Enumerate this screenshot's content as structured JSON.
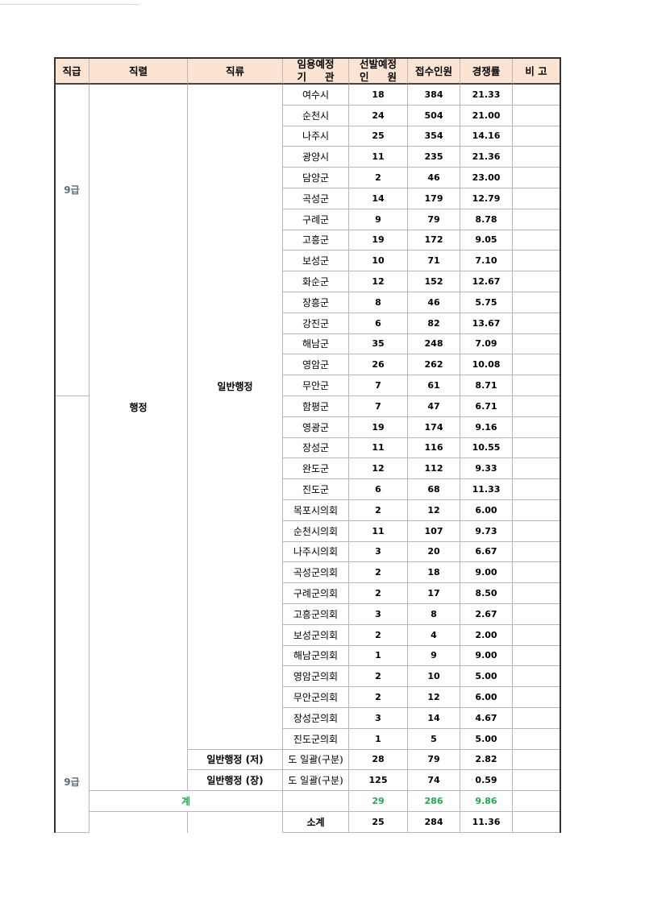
{
  "header": {
    "grade": "직급",
    "series": "직렬",
    "category": "직류",
    "org_l1": "임용예정",
    "org_l2a": "기",
    "org_l2b": "관",
    "planned_l1": "선발예정",
    "planned_l2a": "인",
    "planned_l2b": "원",
    "applicants": "접수인원",
    "ratio": "경쟁률",
    "note": "비 고"
  },
  "groups": {
    "grade_top": "9급",
    "grade_bottom": "9급",
    "series": "행정",
    "category_main": "일반행정",
    "total_label": "계",
    "subtotal_label": "소계"
  },
  "rows": [
    {
      "org": "여수시",
      "planned": "18",
      "applicants": "384",
      "ratio": "21.33"
    },
    {
      "org": "순천시",
      "planned": "24",
      "applicants": "504",
      "ratio": "21.00"
    },
    {
      "org": "나주시",
      "planned": "25",
      "applicants": "354",
      "ratio": "14.16"
    },
    {
      "org": "광양시",
      "planned": "11",
      "applicants": "235",
      "ratio": "21.36"
    },
    {
      "org": "담양군",
      "planned": "2",
      "applicants": "46",
      "ratio": "23.00"
    },
    {
      "org": "곡성군",
      "planned": "14",
      "applicants": "179",
      "ratio": "12.79"
    },
    {
      "org": "구례군",
      "planned": "9",
      "applicants": "79",
      "ratio": "8.78"
    },
    {
      "org": "고흥군",
      "planned": "19",
      "applicants": "172",
      "ratio": "9.05"
    },
    {
      "org": "보성군",
      "planned": "10",
      "applicants": "71",
      "ratio": "7.10"
    },
    {
      "org": "화순군",
      "planned": "12",
      "applicants": "152",
      "ratio": "12.67"
    },
    {
      "org": "장흥군",
      "planned": "8",
      "applicants": "46",
      "ratio": "5.75"
    },
    {
      "org": "강진군",
      "planned": "6",
      "applicants": "82",
      "ratio": "13.67"
    },
    {
      "org": "해남군",
      "planned": "35",
      "applicants": "248",
      "ratio": "7.09"
    },
    {
      "org": "영암군",
      "planned": "26",
      "applicants": "262",
      "ratio": "10.08"
    },
    {
      "org": "무안군",
      "planned": "7",
      "applicants": "61",
      "ratio": "8.71"
    },
    {
      "org": "함평군",
      "planned": "7",
      "applicants": "47",
      "ratio": "6.71"
    },
    {
      "org": "영광군",
      "planned": "19",
      "applicants": "174",
      "ratio": "9.16"
    },
    {
      "org": "장성군",
      "planned": "11",
      "applicants": "116",
      "ratio": "10.55"
    },
    {
      "org": "완도군",
      "planned": "12",
      "applicants": "112",
      "ratio": "9.33"
    },
    {
      "org": "진도군",
      "planned": "6",
      "applicants": "68",
      "ratio": "11.33"
    },
    {
      "org": "목포시의회",
      "planned": "2",
      "applicants": "12",
      "ratio": "6.00"
    },
    {
      "org": "순천시의회",
      "planned": "11",
      "applicants": "107",
      "ratio": "9.73"
    },
    {
      "org": "나주시의회",
      "planned": "3",
      "applicants": "20",
      "ratio": "6.67"
    },
    {
      "org": "곡성군의회",
      "planned": "2",
      "applicants": "18",
      "ratio": "9.00"
    },
    {
      "org": "구례군의회",
      "planned": "2",
      "applicants": "17",
      "ratio": "8.50"
    },
    {
      "org": "고흥군의회",
      "planned": "3",
      "applicants": "8",
      "ratio": "2.67"
    },
    {
      "org": "보성군의회",
      "planned": "2",
      "applicants": "4",
      "ratio": "2.00"
    },
    {
      "org": "해남군의회",
      "planned": "1",
      "applicants": "9",
      "ratio": "9.00"
    },
    {
      "org": "영암군의회",
      "planned": "2",
      "applicants": "10",
      "ratio": "5.00"
    },
    {
      "org": "무안군의회",
      "planned": "2",
      "applicants": "12",
      "ratio": "6.00"
    },
    {
      "org": "장성군의회",
      "planned": "3",
      "applicants": "14",
      "ratio": "4.67"
    },
    {
      "org": "진도군의회",
      "planned": "1",
      "applicants": "5",
      "ratio": "5.00"
    },
    {
      "category": "일반행정 (저)",
      "org": "도 일괄(구분)",
      "planned": "28",
      "applicants": "79",
      "ratio": "2.82"
    },
    {
      "category": "일반행정 (장)",
      "org": "도 일괄(구분)",
      "planned": "125",
      "applicants": "74",
      "ratio": "0.59"
    }
  ],
  "total": {
    "planned": "29",
    "applicants": "286",
    "ratio": "9.86"
  },
  "subtotal": {
    "planned": "25",
    "applicants": "284",
    "ratio": "11.36"
  },
  "colors": {
    "header_bg": "#fde4d2",
    "total_green": "#22a94f",
    "grade_text": "#5d6b7a"
  }
}
